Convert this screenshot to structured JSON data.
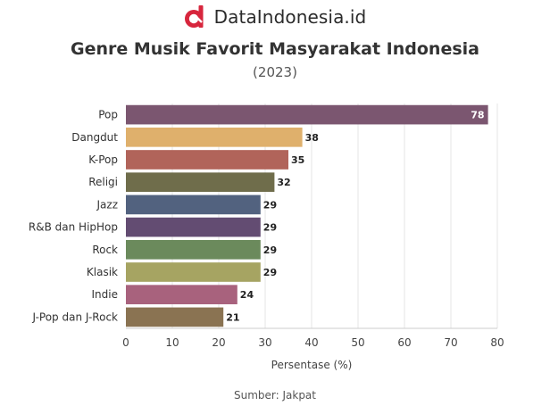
{
  "brand": {
    "name": "DataIndonesia.id",
    "logo_icon": "dataindonesia-logo-icon",
    "logo_color": "#d7263d"
  },
  "title": "Genre Musik Favorit Masyarakat Indonesia",
  "subtitle": "(2023)",
  "source": "Sumber: Jakpat",
  "chart_data": {
    "type": "bar",
    "orientation": "horizontal",
    "categories": [
      "Pop",
      "Dangdut",
      "K-Pop",
      "Religi",
      "Jazz",
      "R&B dan HipHop",
      "Rock",
      "Klasik",
      "Indie",
      "J-Pop dan J-Rock"
    ],
    "values": [
      78,
      38,
      35,
      32,
      29,
      29,
      29,
      29,
      24,
      21
    ],
    "colors": [
      "#7b5670",
      "#dfb06c",
      "#b1645a",
      "#6f6d4b",
      "#52627f",
      "#634c72",
      "#6b8a5c",
      "#a6a462",
      "#a8627d",
      "#8a7352"
    ],
    "xlabel": "Persentase (%)",
    "ylabel": "",
    "xlim": [
      0,
      80
    ],
    "xticks": [
      0,
      10,
      20,
      30,
      40,
      50,
      60,
      70,
      80
    ],
    "grid": true,
    "data_labels": true
  }
}
